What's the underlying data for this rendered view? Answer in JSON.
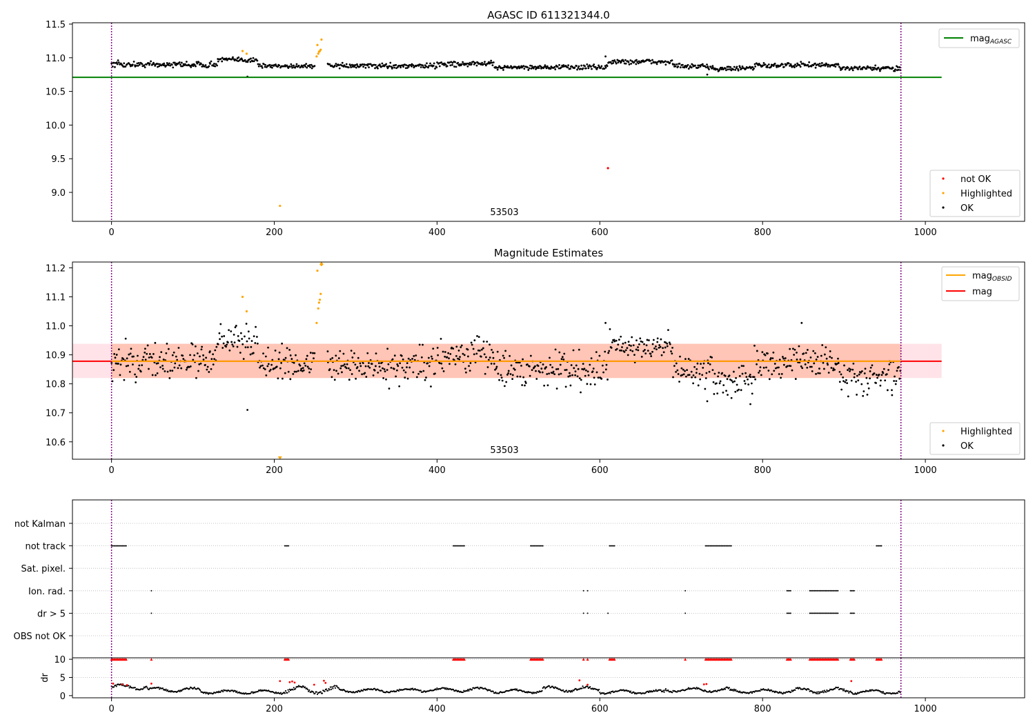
{
  "figure": {
    "background": "#ffffff"
  },
  "chart_data": [
    {
      "type": "scatter",
      "title": "AGASC ID 611321344.0",
      "xlim": [
        -48,
        1122
      ],
      "ylim": [
        8.57,
        11.52
      ],
      "xticks": [
        0,
        200,
        400,
        600,
        800,
        1000
      ],
      "yticks": [
        9.0,
        9.5,
        10.0,
        10.5,
        11.0,
        11.5
      ],
      "ytick_decimals": 1,
      "vlines": [
        0,
        970
      ],
      "vline_color": "#800080",
      "annotation": "53503",
      "annotation_x": 483,
      "lines": [
        {
          "name": "mag_AGASC",
          "x0": -48,
          "x1": 1020,
          "y": 10.71,
          "color": "#008000"
        }
      ],
      "series": {
        "ok": {
          "name": "OK",
          "color": "#000000",
          "segments": [
            {
              "x0": 0,
              "x1": 60,
              "mean": 10.9,
              "amp": 0.05
            },
            {
              "x0": 60,
              "x1": 130,
              "mean": 10.9,
              "amp": 0.045
            },
            {
              "x0": 130,
              "x1": 180,
              "mean": 10.97,
              "amp": 0.04
            },
            {
              "x0": 180,
              "x1": 250,
              "mean": 10.88,
              "amp": 0.04
            },
            {
              "x0": 265,
              "x1": 400,
              "mean": 10.88,
              "amp": 0.04
            },
            {
              "x0": 400,
              "x1": 470,
              "mean": 10.91,
              "amp": 0.04
            },
            {
              "x0": 470,
              "x1": 540,
              "mean": 10.86,
              "amp": 0.04
            },
            {
              "x0": 540,
              "x1": 610,
              "mean": 10.86,
              "amp": 0.04
            },
            {
              "x0": 610,
              "x1": 690,
              "mean": 10.94,
              "amp": 0.04
            },
            {
              "x0": 690,
              "x1": 740,
              "mean": 10.87,
              "amp": 0.04
            },
            {
              "x0": 740,
              "x1": 790,
              "mean": 10.84,
              "amp": 0.04
            },
            {
              "x0": 790,
              "x1": 895,
              "mean": 10.89,
              "amp": 0.04
            },
            {
              "x0": 895,
              "x1": 970,
              "mean": 10.84,
              "amp": 0.04
            }
          ],
          "extra": [
            {
              "x": 167,
              "y": 10.72
            },
            {
              "x": 607,
              "y": 11.02
            },
            {
              "x": 732,
              "y": 10.75
            }
          ]
        },
        "highlighted": {
          "name": "Highlighted",
          "color": "#ffa500",
          "points": [
            {
              "x": 161,
              "y": 11.1
            },
            {
              "x": 166,
              "y": 11.06
            },
            {
              "x": 207,
              "y": 8.8
            },
            {
              "x": 253,
              "y": 11.19
            },
            {
              "x": 254,
              "y": 11.06
            },
            {
              "x": 255,
              "y": 11.09
            },
            {
              "x": 256,
              "y": 11.1
            },
            {
              "x": 257,
              "y": 11.12
            },
            {
              "x": 258,
              "y": 11.27
            },
            {
              "x": 252,
              "y": 11.02
            }
          ]
        },
        "not_ok": {
          "name": "not OK",
          "color": "#ff0000",
          "points": [
            {
              "x": 610,
              "y": 9.36
            }
          ]
        }
      },
      "legend_upper": [
        {
          "type": "line",
          "label": "mag",
          "sub": "AGASC",
          "color": "#008000"
        }
      ],
      "legend_lower": [
        {
          "type": "dot",
          "label": "not OK",
          "color": "#ff0000"
        },
        {
          "type": "dot",
          "label": "Highlighted",
          "color": "#ffa500"
        },
        {
          "type": "dot",
          "label": "OK",
          "color": "#000000"
        }
      ]
    },
    {
      "type": "scatter",
      "title": "Magnitude Estimates",
      "xlim": [
        -48,
        1122
      ],
      "ylim": [
        10.54,
        11.22
      ],
      "xticks": [
        0,
        200,
        400,
        600,
        800,
        1000
      ],
      "yticks": [
        10.6,
        10.7,
        10.8,
        10.9,
        11.0,
        11.1,
        11.2
      ],
      "ytick_decimals": 1,
      "vlines": [
        0,
        970
      ],
      "vline_color": "#800080",
      "annotation": "53503",
      "annotation_x": 483,
      "bands": [
        {
          "x0": -48,
          "x1": 1020,
          "y0": 10.82,
          "y1": 10.938,
          "color": "#ffc0cb",
          "opacity": 0.45
        },
        {
          "x0": 0,
          "x1": 970,
          "y0": 10.82,
          "y1": 10.938,
          "color": "#ffa07a",
          "opacity": 0.45
        }
      ],
      "lines": [
        {
          "name": "mag",
          "x0": -48,
          "x1": 1020,
          "y": 10.878,
          "color": "#ff0000"
        },
        {
          "name": "mag_OBSID",
          "x0": 0,
          "x1": 970,
          "y": 10.878,
          "color": "#ffa500"
        }
      ],
      "series": {
        "ok": {
          "name": "OK",
          "color": "#000000",
          "segments": [
            {
              "x0": 0,
              "x1": 60,
              "mean": 10.88,
              "amp": 0.075
            },
            {
              "x0": 60,
              "x1": 130,
              "mean": 10.88,
              "amp": 0.06
            },
            {
              "x0": 130,
              "x1": 180,
              "mean": 10.95,
              "amp": 0.06
            },
            {
              "x0": 180,
              "x1": 250,
              "mean": 10.87,
              "amp": 0.06
            },
            {
              "x0": 265,
              "x1": 400,
              "mean": 10.86,
              "amp": 0.06
            },
            {
              "x0": 400,
              "x1": 470,
              "mean": 10.9,
              "amp": 0.06
            },
            {
              "x0": 470,
              "x1": 540,
              "mean": 10.85,
              "amp": 0.06
            },
            {
              "x0": 540,
              "x1": 610,
              "mean": 10.85,
              "amp": 0.07
            },
            {
              "x0": 610,
              "x1": 690,
              "mean": 10.93,
              "amp": 0.05
            },
            {
              "x0": 690,
              "x1": 740,
              "mean": 10.84,
              "amp": 0.06
            },
            {
              "x0": 740,
              "x1": 790,
              "mean": 10.81,
              "amp": 0.06
            },
            {
              "x0": 790,
              "x1": 895,
              "mean": 10.88,
              "amp": 0.06
            },
            {
              "x0": 895,
              "x1": 970,
              "mean": 10.82,
              "amp": 0.06
            }
          ],
          "extra": [
            {
              "x": 167,
              "y": 10.71
            },
            {
              "x": 607,
              "y": 11.01
            },
            {
              "x": 732,
              "y": 10.74
            },
            {
              "x": 785,
              "y": 10.73
            },
            {
              "x": 848,
              "y": 11.01
            }
          ]
        },
        "highlighted": {
          "name": "Highlighted",
          "color": "#ffa500",
          "points": [
            {
              "x": 161,
              "y": 11.1
            },
            {
              "x": 166,
              "y": 11.05
            },
            {
              "x": 252,
              "y": 11.01
            },
            {
              "x": 253,
              "y": 11.19
            },
            {
              "x": 254,
              "y": 11.06
            },
            {
              "x": 255,
              "y": 11.08
            },
            {
              "x": 256,
              "y": 11.09
            },
            {
              "x": 257,
              "y": 11.11
            },
            {
              "x": 258,
              "y": 11.21
            }
          ],
          "offscale": [
            {
              "x": 207,
              "y": 10.545,
              "marker": "tri-down"
            },
            {
              "x": 258,
              "y": 11.215,
              "marker": "tri-up"
            }
          ]
        }
      },
      "legend_upper": [
        {
          "type": "line",
          "label": "mag",
          "sub": "OBSID",
          "color": "#ffa500"
        },
        {
          "type": "line",
          "label": "mag",
          "sub": "",
          "color": "#ff0000"
        }
      ],
      "legend_lower": [
        {
          "type": "dot",
          "label": "Highlighted",
          "color": "#ffa500"
        },
        {
          "type": "dot",
          "label": "OK",
          "color": "#000000"
        }
      ]
    },
    {
      "type": "scatter",
      "title": "",
      "xlim": [
        -48,
        1122
      ],
      "xticks": [
        0,
        200,
        400,
        600,
        800,
        1000
      ],
      "vlines": [
        0,
        970
      ],
      "vline_color": "#800080",
      "flag_rows": [
        "not Kalman",
        "not track",
        "Sat. pixel.",
        "Ion. rad.",
        "dr > 5",
        "OBS not OK"
      ],
      "flags": {
        "not track": [
          [
            0,
            18
          ],
          [
            213,
            218
          ],
          [
            420,
            434
          ],
          [
            515,
            530
          ],
          [
            612,
            619
          ],
          [
            730,
            762
          ],
          [
            940,
            947
          ]
        ],
        "Ion. rad.": [
          [
            49,
            49
          ],
          [
            580,
            580
          ],
          [
            585,
            585
          ],
          [
            705,
            705
          ],
          [
            830,
            835
          ],
          [
            858,
            893
          ],
          [
            908,
            913
          ]
        ],
        "dr > 5": [
          [
            49,
            49
          ],
          [
            580,
            580
          ],
          [
            585,
            585
          ],
          [
            610,
            610
          ],
          [
            705,
            705
          ],
          [
            830,
            835
          ],
          [
            858,
            893
          ],
          [
            908,
            913
          ]
        ]
      },
      "dr": {
        "ylabel": "dr",
        "yticks": [
          0,
          5,
          10
        ],
        "ylim": [
          -0.6,
          10.4
        ],
        "cap": 10,
        "capped_ranges": [
          [
            0,
            18
          ],
          [
            49,
            49
          ],
          [
            213,
            218
          ],
          [
            420,
            434
          ],
          [
            515,
            530
          ],
          [
            580,
            580
          ],
          [
            585,
            585
          ],
          [
            612,
            619
          ],
          [
            705,
            705
          ],
          [
            730,
            762
          ],
          [
            830,
            835
          ],
          [
            858,
            893
          ],
          [
            908,
            913
          ],
          [
            940,
            947
          ]
        ],
        "red_points": [
          {
            "x": 2,
            "y": 3.3
          },
          {
            "x": 13,
            "y": 3.1
          },
          {
            "x": 19,
            "y": 2.9
          },
          {
            "x": 49,
            "y": 3.3
          },
          {
            "x": 207,
            "y": 4.0
          },
          {
            "x": 219,
            "y": 3.7
          },
          {
            "x": 222,
            "y": 3.9
          },
          {
            "x": 225,
            "y": 3.6
          },
          {
            "x": 249,
            "y": 3.0
          },
          {
            "x": 261,
            "y": 4.1
          },
          {
            "x": 263,
            "y": 3.5
          },
          {
            "x": 575,
            "y": 4.2
          },
          {
            "x": 585,
            "y": 3.0
          },
          {
            "x": 728,
            "y": 3.1
          },
          {
            "x": 731,
            "y": 3.2
          },
          {
            "x": 909,
            "y": 4.0
          }
        ],
        "segments": [
          {
            "x0": 0,
            "x1": 45,
            "mean": 2.4,
            "amp": 0.9
          },
          {
            "x0": 45,
            "x1": 110,
            "mean": 1.6,
            "amp": 0.8
          },
          {
            "x0": 110,
            "x1": 210,
            "mean": 1.0,
            "amp": 0.7
          },
          {
            "x0": 210,
            "x1": 280,
            "mean": 1.5,
            "amp": 1.4
          },
          {
            "x0": 280,
            "x1": 370,
            "mean": 1.4,
            "amp": 0.7
          },
          {
            "x0": 370,
            "x1": 470,
            "mean": 1.6,
            "amp": 0.8
          },
          {
            "x0": 470,
            "x1": 530,
            "mean": 1.2,
            "amp": 0.7
          },
          {
            "x0": 530,
            "x1": 600,
            "mean": 1.8,
            "amp": 1.0
          },
          {
            "x0": 600,
            "x1": 680,
            "mean": 1.0,
            "amp": 0.7
          },
          {
            "x0": 680,
            "x1": 760,
            "mean": 1.6,
            "amp": 0.9
          },
          {
            "x0": 760,
            "x1": 840,
            "mean": 1.2,
            "amp": 0.8
          },
          {
            "x0": 840,
            "x1": 910,
            "mean": 1.4,
            "amp": 1.0
          },
          {
            "x0": 910,
            "x1": 970,
            "mean": 1.0,
            "amp": 0.8
          }
        ]
      }
    }
  ]
}
